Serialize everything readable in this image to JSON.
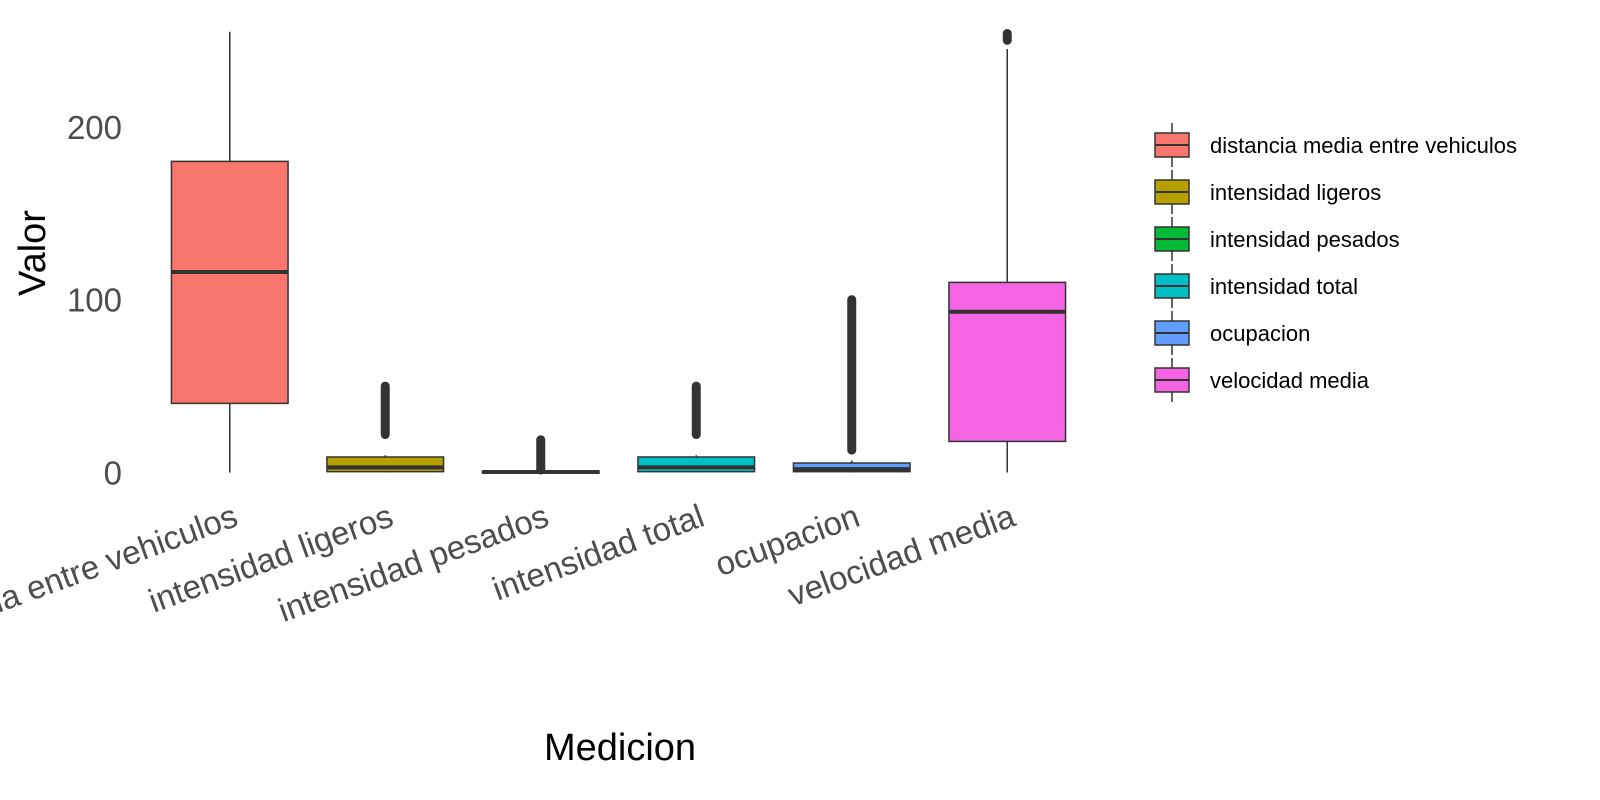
{
  "chart_data": {
    "type": "boxplot",
    "xlabel": "Medicion",
    "ylabel": "Valor",
    "ylim": [
      -2,
      256
    ],
    "y_ticks": [
      0,
      100,
      200
    ],
    "grid": false,
    "legend_position": "right",
    "categories": [
      "distancia media entre vehiculos",
      "intensidad ligeros",
      "intensidad pesados",
      "intensidad total",
      "ocupacion",
      "velocidad media"
    ],
    "tick_labels": [
      "distancia media entre vehiculos",
      "intensidad ligeros",
      "intensidad pesados",
      "intensidad total",
      "ocupacion",
      "velocidad media"
    ],
    "boxes": [
      {
        "name": "distancia media entre vehiculos",
        "color": "#F8766D",
        "whisker_low": 0,
        "q1": 40,
        "median": 116,
        "q3": 180,
        "whisker_high": 255,
        "outliers_from": null,
        "outliers_to": null
      },
      {
        "name": "intensidad ligeros",
        "color": "#B79F00",
        "whisker_low": 0,
        "q1": 0.5,
        "median": 3,
        "q3": 9,
        "whisker_high": 10,
        "outliers_from": 22,
        "outliers_to": 50
      },
      {
        "name": "intensidad pesados",
        "color": "#00BA38",
        "whisker_low": 0,
        "q1": 0,
        "median": 0.3,
        "q3": 0.8,
        "whisker_high": 1,
        "outliers_from": 1.5,
        "outliers_to": 19
      },
      {
        "name": "intensidad total",
        "color": "#00BFC4",
        "whisker_low": 0,
        "q1": 0.5,
        "median": 3,
        "q3": 9,
        "whisker_high": 10,
        "outliers_from": 22,
        "outliers_to": 50
      },
      {
        "name": "ocupacion",
        "color": "#619CFF",
        "whisker_low": 0,
        "q1": 0.5,
        "median": 2,
        "q3": 5.5,
        "whisker_high": 7,
        "outliers_from": 13,
        "outliers_to": 100
      },
      {
        "name": "velocidad media",
        "color": "#F564E3",
        "whisker_low": 0,
        "q1": 18,
        "median": 93,
        "q3": 110,
        "whisker_high": 245,
        "outliers_from": 250,
        "outliers_to": 254
      }
    ]
  }
}
